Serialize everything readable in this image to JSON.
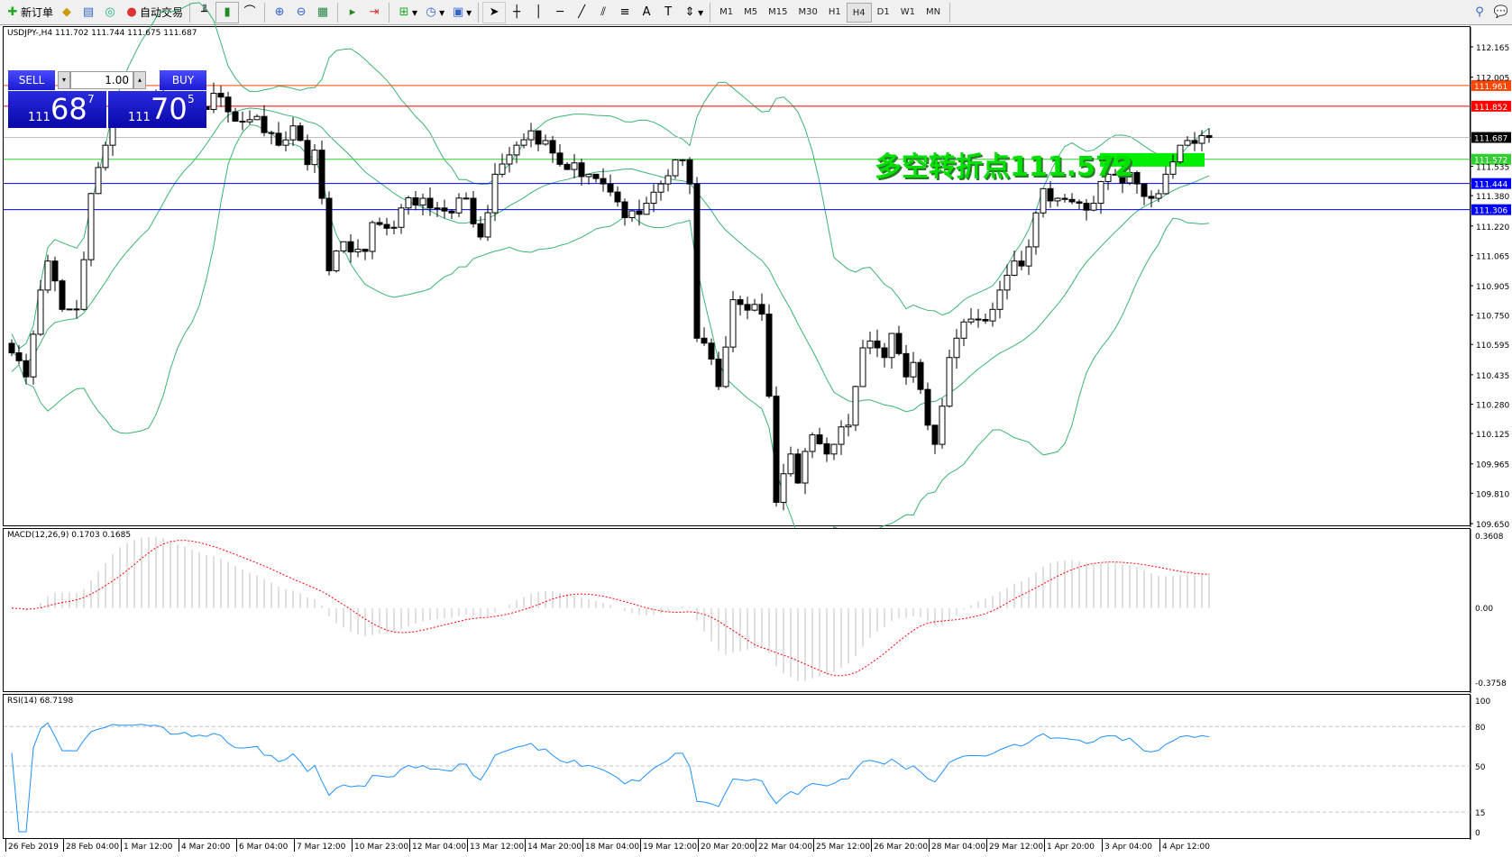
{
  "toolbar": {
    "new_order": "新订单",
    "auto_trading": "自动交易",
    "timeframes": [
      "M1",
      "M5",
      "M15",
      "M30",
      "H1",
      "H4",
      "D1",
      "W1",
      "MN"
    ],
    "active_timeframe": "H4",
    "icons": [
      "new-order-icon",
      "market-watch-icon",
      "navigator-icon",
      "signals-icon",
      "auto-trading-icon",
      "bar-chart-icon",
      "candlestick-icon",
      "line-chart-icon",
      "zoom-in-icon",
      "zoom-out-icon",
      "tile-windows-icon",
      "chart-shift-icon",
      "autoscroll-icon",
      "indicators-icon",
      "periods-icon",
      "templates-icon",
      "cursor-icon",
      "crosshair-icon",
      "vertical-line-icon",
      "horizontal-line-icon",
      "trendline-icon",
      "fibonacci-icon",
      "channel-icon",
      "text-icon",
      "text-label-icon",
      "arrows-icon",
      "search-icon",
      "chat-icon"
    ]
  },
  "chart": {
    "header": "USDJPY-,H4  111.702 111.744 111.675 111.687",
    "trade": {
      "sell": "SELL",
      "buy": "BUY",
      "lot": "1.00",
      "bid_big": "111",
      "bid_main": "68",
      "bid_sup": "7",
      "ask_big": "111",
      "ask_main": "70",
      "ask_sup": "5"
    },
    "annotation": "多空转折点111.572",
    "price_ticks": [
      "112.165",
      "112.005",
      "111.535",
      "111.380",
      "111.220",
      "111.065",
      "110.905",
      "110.750",
      "110.595",
      "110.435",
      "110.280",
      "110.125",
      "109.965",
      "109.810",
      "109.650"
    ],
    "price_range": [
      109.65,
      112.165
    ],
    "levels": [
      {
        "price": "111.961",
        "color": "#ff4500"
      },
      {
        "price": "111.852",
        "color": "#ff0000"
      },
      {
        "price": "111.687",
        "color": "#000000",
        "line": "#c0c0c0"
      },
      {
        "price": "111.572",
        "color": "#32cd32"
      },
      {
        "price": "111.444",
        "color": "#0000ff"
      },
      {
        "price": "111.306",
        "color": "#0000ff"
      }
    ],
    "time_labels": [
      "26 Feb 2019",
      "28 Feb 04:00",
      "1 Mar 12:00",
      "4 Mar 20:00",
      "6 Mar 04:00",
      "7 Mar 12:00",
      "10 Mar 23:00",
      "12 Mar 04:00",
      "13 Mar 12:00",
      "14 Mar 20:00",
      "18 Mar 04:00",
      "19 Mar 12:00",
      "20 Mar 20:00",
      "22 Mar 04:00",
      "25 Mar 12:00",
      "26 Mar 20:00",
      "28 Mar 04:00",
      "29 Mar 12:00",
      "1 Apr 20:00",
      "3 Apr 04:00",
      "4 Apr 12:00"
    ],
    "close_keypoints": [
      [
        0,
        110.551
      ],
      [
        2,
        110.424
      ],
      [
        4,
        110.882
      ],
      [
        5,
        111.035
      ],
      [
        7,
        110.78
      ],
      [
        9,
        110.78
      ],
      [
        11,
        111.391
      ],
      [
        13,
        111.646
      ],
      [
        14,
        111.849
      ],
      [
        17,
        111.849
      ],
      [
        21,
        111.875
      ],
      [
        23,
        111.798
      ],
      [
        26,
        111.849
      ],
      [
        29,
        111.9
      ],
      [
        31,
        111.773
      ],
      [
        34,
        111.798
      ],
      [
        37,
        111.646
      ],
      [
        39,
        111.748
      ],
      [
        41,
        111.544
      ],
      [
        42,
        111.62
      ],
      [
        43,
        111.366
      ],
      [
        44,
        110.984
      ],
      [
        46,
        111.137
      ],
      [
        49,
        111.086
      ],
      [
        50,
        111.238
      ],
      [
        53,
        111.213
      ],
      [
        54,
        111.315
      ],
      [
        57,
        111.366
      ],
      [
        58,
        111.315
      ],
      [
        61,
        111.289
      ],
      [
        63,
        111.366
      ],
      [
        65,
        111.162
      ],
      [
        67,
        111.493
      ],
      [
        69,
        111.595
      ],
      [
        72,
        111.722
      ],
      [
        74,
        111.671
      ],
      [
        77,
        111.518
      ],
      [
        80,
        111.493
      ],
      [
        82,
        111.442
      ],
      [
        85,
        111.264
      ],
      [
        88,
        111.34
      ],
      [
        90,
        111.442
      ],
      [
        92,
        111.569
      ],
      [
        93,
        111.569
      ],
      [
        94,
        111.442
      ],
      [
        95,
        110.628
      ],
      [
        96,
        110.602
      ],
      [
        98,
        110.373
      ],
      [
        100,
        110.831
      ],
      [
        101,
        110.806
      ],
      [
        104,
        110.755
      ],
      [
        105,
        110.322
      ],
      [
        106,
        109.762
      ],
      [
        108,
        110.017
      ],
      [
        109,
        109.864
      ],
      [
        111,
        110.118
      ],
      [
        113,
        110.017
      ],
      [
        114,
        110.068
      ],
      [
        116,
        110.169
      ],
      [
        117,
        110.373
      ],
      [
        118,
        110.577
      ],
      [
        120,
        110.577
      ],
      [
        121,
        110.526
      ],
      [
        122,
        110.653
      ],
      [
        124,
        110.424
      ],
      [
        125,
        110.5
      ],
      [
        127,
        110.169
      ],
      [
        128,
        110.068
      ],
      [
        130,
        110.526
      ],
      [
        131,
        110.628
      ],
      [
        133,
        110.729
      ],
      [
        136,
        110.78
      ],
      [
        137,
        110.882
      ],
      [
        139,
        111.035
      ],
      [
        140,
        111.009
      ],
      [
        142,
        111.289
      ],
      [
        143,
        111.417
      ],
      [
        145,
        111.366
      ],
      [
        148,
        111.34
      ],
      [
        150,
        111.34
      ],
      [
        152,
        111.493
      ],
      [
        153,
        111.493
      ],
      [
        156,
        111.442
      ],
      [
        158,
        111.366
      ],
      [
        160,
        111.493
      ],
      [
        162,
        111.646
      ],
      [
        163,
        111.671
      ],
      [
        165,
        111.697
      ],
      [
        166,
        111.687
      ]
    ]
  },
  "macd": {
    "label": "MACD(12,26,9) 0.1703 0.1685",
    "ticks": [
      "0.3608",
      "0.00",
      "-0.3758"
    ],
    "range": [
      -0.3758,
      0.3608
    ],
    "hist_color": "#c0c0c0",
    "signal_color": "#ff0000"
  },
  "rsi": {
    "label": "RSI(14) 68.7198",
    "ticks": [
      "100",
      "80",
      "50",
      "15",
      "0"
    ],
    "levels": [
      80,
      50,
      15
    ],
    "color": "#1e90ff"
  }
}
